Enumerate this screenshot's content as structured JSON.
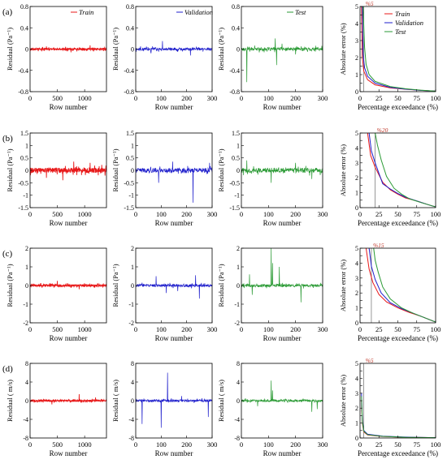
{
  "figure": {
    "rows": [
      {
        "label": "(a)",
        "residual_ylabel": "Residual (Pa⁻¹)",
        "yticks": [
          "0.8",
          "0.4",
          "0",
          "-0.4",
          "-0.8"
        ],
        "ylim": [
          -0.8,
          0.8
        ],
        "yvals": [
          0.8,
          0.4,
          0,
          -0.4,
          -0.8
        ],
        "marker_label": "%5",
        "marker_x": 5
      },
      {
        "label": "(b)",
        "residual_ylabel": "Residual (Pa⁻¹)",
        "yticks": [
          "1.5",
          "1",
          "0.5",
          "0",
          "-0.5",
          "-1",
          "-1.5"
        ],
        "ylim": [
          -1.5,
          1.5
        ],
        "yvals": [
          1.5,
          1,
          0.5,
          0,
          -0.5,
          -1,
          -1.5
        ],
        "marker_label": "%20",
        "marker_x": 20
      },
      {
        "label": "(c)",
        "residual_ylabel": "Residual (Pa⁻¹)",
        "yticks": [
          "2",
          "1",
          "0",
          "-1",
          "-2"
        ],
        "ylim": [
          -2,
          2
        ],
        "yvals": [
          2,
          1,
          0,
          -1,
          -2
        ],
        "marker_label": "%15",
        "marker_x": 15
      },
      {
        "label": "(d)",
        "residual_ylabel": "Residual ( m/s)",
        "yticks": [
          "8",
          "4",
          "0",
          "-4",
          "-8"
        ],
        "ylim": [
          -8,
          8
        ],
        "yvals": [
          8,
          4,
          0,
          -4,
          -8
        ],
        "marker_label": "%5",
        "marker_x": 5
      }
    ],
    "row_xlabel": "Row number",
    "exc_xlabel": "Percentage exceedance (%)",
    "exc_ylabel": "Absolute error (%)",
    "exc_yticks": [
      "5",
      "4.5",
      "4",
      "3.5",
      "3",
      "2.5",
      "2",
      "1.5",
      "1",
      "0.5",
      "0"
    ],
    "exc_xticks": [
      "0",
      "25",
      "50",
      "75",
      "100"
    ],
    "train_xticks": [
      "0",
      "500",
      "1000"
    ],
    "val_xticks": [
      "0",
      "100",
      "200",
      "300"
    ],
    "legend": {
      "train": "Train",
      "validation": "Validation",
      "test": "Test"
    },
    "colors": {
      "train": "#e8191a",
      "validation": "#1f1fcc",
      "test": "#2a9a34"
    }
  },
  "chart_data": [
    {
      "type": "line",
      "panel": "a-train",
      "xlim": [
        0,
        1400
      ],
      "ylim": [
        -0.8,
        0.8
      ],
      "spikes": [
        [
          300,
          0.05
        ],
        [
          750,
          -0.06
        ],
        [
          1100,
          0.07
        ]
      ],
      "noise": 0.02
    },
    {
      "type": "line",
      "panel": "a-validation",
      "xlim": [
        0,
        300
      ],
      "ylim": [
        -0.8,
        0.8
      ],
      "spikes": [
        [
          105,
          0.15
        ],
        [
          215,
          -0.12
        ],
        [
          60,
          -0.08
        ]
      ],
      "noise": 0.025
    },
    {
      "type": "line",
      "panel": "a-test",
      "xlim": [
        0,
        300
      ],
      "ylim": [
        -0.8,
        0.8
      ],
      "spikes": [
        [
          20,
          -0.62
        ],
        [
          125,
          0.2
        ],
        [
          130,
          -0.3
        ],
        [
          150,
          0.1
        ],
        [
          200,
          -0.1
        ]
      ],
      "noise": 0.03
    },
    {
      "type": "line",
      "panel": "a-exceedance",
      "xlim": [
        0,
        100
      ],
      "ylim": [
        0,
        5
      ],
      "series": [
        {
          "name": "Train",
          "points": [
            [
              2,
              5
            ],
            [
              3,
              2
            ],
            [
              5,
              1.2
            ],
            [
              10,
              0.7
            ],
            [
              20,
              0.4
            ],
            [
              40,
              0.22
            ],
            [
              60,
              0.14
            ],
            [
              80,
              0.08
            ],
            [
              100,
              0.03
            ]
          ]
        },
        {
          "name": "Validation",
          "points": [
            [
              3,
              5
            ],
            [
              4,
              2.2
            ],
            [
              6,
              1.4
            ],
            [
              10,
              0.9
            ],
            [
              20,
              0.5
            ],
            [
              40,
              0.25
            ],
            [
              60,
              0.15
            ],
            [
              80,
              0.08
            ],
            [
              100,
              0.03
            ]
          ]
        },
        {
          "name": "Test",
          "points": [
            [
              4,
              5
            ],
            [
              6,
              2.6
            ],
            [
              8,
              1.6
            ],
            [
              12,
              1.0
            ],
            [
              20,
              0.6
            ],
            [
              40,
              0.3
            ],
            [
              60,
              0.17
            ],
            [
              80,
              0.09
            ],
            [
              100,
              0.03
            ]
          ]
        }
      ]
    },
    {
      "type": "line",
      "panel": "b-train",
      "xlim": [
        0,
        1400
      ],
      "ylim": [
        -1.5,
        1.5
      ],
      "spikes": [
        [
          600,
          -0.4
        ],
        [
          800,
          0.35
        ],
        [
          300,
          -0.3
        ],
        [
          1100,
          0.3
        ]
      ],
      "noise": 0.1
    },
    {
      "type": "line",
      "panel": "b-validation",
      "xlim": [
        0,
        300
      ],
      "ylim": [
        -1.5,
        1.5
      ],
      "spikes": [
        [
          225,
          -1.3
        ],
        [
          90,
          -0.5
        ],
        [
          145,
          0.35
        ],
        [
          290,
          0.3
        ]
      ],
      "noise": 0.09
    },
    {
      "type": "line",
      "panel": "b-test",
      "xlim": [
        0,
        300
      ],
      "ylim": [
        -1.5,
        1.5
      ],
      "spikes": [
        [
          20,
          0.4
        ],
        [
          110,
          -0.5
        ],
        [
          200,
          0.3
        ],
        [
          260,
          -0.35
        ]
      ],
      "noise": 0.1
    },
    {
      "type": "line",
      "panel": "b-exceedance",
      "xlim": [
        0,
        100
      ],
      "ylim": [
        0,
        5
      ],
      "series": [
        {
          "name": "Train",
          "points": [
            [
              10,
              5
            ],
            [
              14,
              3.5
            ],
            [
              20,
              2.7
            ],
            [
              30,
              1.7
            ],
            [
              40,
              1.2
            ],
            [
              50,
              0.9
            ],
            [
              60,
              0.65
            ],
            [
              75,
              0.45
            ],
            [
              90,
              0.2
            ],
            [
              100,
              0.05
            ]
          ]
        },
        {
          "name": "Validation",
          "points": [
            [
              12,
              5
            ],
            [
              15,
              3.8
            ],
            [
              20,
              3.0
            ],
            [
              30,
              1.6
            ],
            [
              40,
              1.25
            ],
            [
              50,
              0.95
            ],
            [
              60,
              0.7
            ],
            [
              75,
              0.45
            ],
            [
              90,
              0.2
            ],
            [
              100,
              0.05
            ]
          ]
        },
        {
          "name": "Test",
          "points": [
            [
              20,
              5
            ],
            [
              23,
              4.2
            ],
            [
              28,
              3.2
            ],
            [
              35,
              2.1
            ],
            [
              45,
              1.3
            ],
            [
              55,
              0.9
            ],
            [
              65,
              0.6
            ],
            [
              80,
              0.35
            ],
            [
              90,
              0.2
            ],
            [
              100,
              0.05
            ]
          ]
        }
      ]
    },
    {
      "type": "line",
      "panel": "c-train",
      "xlim": [
        0,
        1400
      ],
      "ylim": [
        -2,
        2
      ],
      "spikes": [
        [
          500,
          0.25
        ],
        [
          900,
          -0.2
        ]
      ],
      "noise": 0.06
    },
    {
      "type": "line",
      "panel": "c-validation",
      "xlim": [
        0,
        300
      ],
      "ylim": [
        -2,
        2
      ],
      "spikes": [
        [
          80,
          0.5
        ],
        [
          120,
          -0.4
        ],
        [
          235,
          0.55
        ],
        [
          250,
          -0.7
        ],
        [
          165,
          -0.3
        ]
      ],
      "noise": 0.07
    },
    {
      "type": "line",
      "panel": "c-test",
      "xlim": [
        0,
        300
      ],
      "ylim": [
        -2,
        2
      ],
      "spikes": [
        [
          110,
          2.0
        ],
        [
          115,
          1.2
        ],
        [
          140,
          1.0
        ],
        [
          220,
          -0.9
        ],
        [
          40,
          -0.5
        ],
        [
          30,
          0.6
        ]
      ],
      "noise": 0.08
    },
    {
      "type": "line",
      "panel": "c-exceedance",
      "xlim": [
        0,
        100
      ],
      "ylim": [
        0,
        5
      ],
      "series": [
        {
          "name": "Train",
          "points": [
            [
              8,
              5
            ],
            [
              12,
              3.6
            ],
            [
              17,
              2.7
            ],
            [
              25,
              1.9
            ],
            [
              35,
              1.4
            ],
            [
              50,
              1.0
            ],
            [
              65,
              0.7
            ],
            [
              80,
              0.45
            ],
            [
              95,
              0.15
            ],
            [
              100,
              0.05
            ]
          ]
        },
        {
          "name": "Validation",
          "points": [
            [
              12,
              5
            ],
            [
              15,
              3.8
            ],
            [
              20,
              2.9
            ],
            [
              28,
              2.0
            ],
            [
              40,
              1.35
            ],
            [
              55,
              0.95
            ],
            [
              70,
              0.65
            ],
            [
              85,
              0.35
            ],
            [
              100,
              0.05
            ]
          ]
        },
        {
          "name": "Test",
          "points": [
            [
              18,
              5
            ],
            [
              20,
              4.2
            ],
            [
              24,
              3.4
            ],
            [
              30,
              2.4
            ],
            [
              40,
              1.6
            ],
            [
              55,
              1.0
            ],
            [
              70,
              0.65
            ],
            [
              85,
              0.35
            ],
            [
              100,
              0.05
            ]
          ]
        }
      ]
    },
    {
      "type": "line",
      "panel": "d-train",
      "xlim": [
        0,
        1400
      ],
      "ylim": [
        -8,
        8
      ],
      "spikes": [
        [
          900,
          1.4
        ],
        [
          400,
          -0.8
        ],
        [
          1200,
          0.7
        ]
      ],
      "noise": 0.2
    },
    {
      "type": "line",
      "panel": "d-validation",
      "xlim": [
        0,
        300
      ],
      "ylim": [
        -8,
        8
      ],
      "spikes": [
        [
          125,
          6.0
        ],
        [
          100,
          -5.8
        ],
        [
          25,
          -5.0
        ],
        [
          285,
          -3.5
        ],
        [
          180,
          1.0
        ]
      ],
      "noise": 0.25
    },
    {
      "type": "line",
      "panel": "d-test",
      "xlim": [
        0,
        300
      ],
      "ylim": [
        -8,
        8
      ],
      "spikes": [
        [
          110,
          4.3
        ],
        [
          115,
          2.2
        ],
        [
          260,
          -2.4
        ],
        [
          280,
          -1.8
        ],
        [
          60,
          -1.2
        ]
      ],
      "noise": 0.25
    },
    {
      "type": "line",
      "panel": "d-exceedance",
      "xlim": [
        0,
        100
      ],
      "ylim": [
        0,
        5
      ],
      "series": [
        {
          "name": "Train",
          "points": [
            [
              2,
              2.5
            ],
            [
              3,
              1.0
            ],
            [
              5,
              0.4
            ],
            [
              10,
              0.2
            ],
            [
              30,
              0.1
            ],
            [
              60,
              0.05
            ],
            [
              100,
              0.02
            ]
          ]
        },
        {
          "name": "Validation",
          "points": [
            [
              2,
              3.0
            ],
            [
              3,
              1.2
            ],
            [
              5,
              0.5
            ],
            [
              10,
              0.25
            ],
            [
              30,
              0.12
            ],
            [
              60,
              0.06
            ],
            [
              100,
              0.02
            ]
          ]
        },
        {
          "name": "Test",
          "points": [
            [
              2,
              2.8
            ],
            [
              3,
              1.1
            ],
            [
              5,
              0.45
            ],
            [
              10,
              0.22
            ],
            [
              30,
              0.11
            ],
            [
              60,
              0.05
            ],
            [
              100,
              0.02
            ]
          ]
        }
      ]
    }
  ]
}
